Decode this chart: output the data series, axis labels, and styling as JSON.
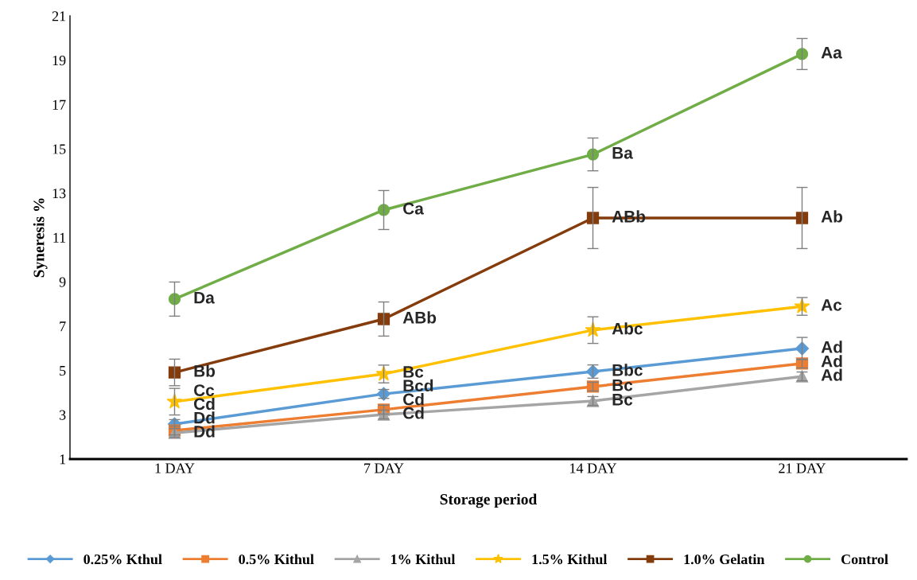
{
  "chart_data": {
    "type": "line",
    "xlabel": "Storage period",
    "ylabel": "Syneresis %",
    "categories": [
      "1 DAY",
      "7 DAY",
      "14 DAY",
      "21 DAY"
    ],
    "ylim": [
      1,
      21
    ],
    "yticks": [
      1,
      3,
      5,
      7,
      9,
      11,
      13,
      15,
      17,
      19,
      21
    ],
    "grid": false,
    "legend": "bottom",
    "series": [
      {
        "name": "0.25% Kthul",
        "color": "#5b9bd5",
        "marker": "diamond",
        "values": [
          2.58,
          3.94,
          4.95,
          5.99
        ],
        "errors": [
          0.2,
          0.2,
          0.3,
          0.5
        ],
        "value_labels": [
          "Cd",
          "Bcd",
          "Bbc",
          "Ad"
        ]
      },
      {
        "name": "0.5% Kithul",
        "color": "#ed7d31",
        "marker": "square",
        "values": [
          2.29,
          3.23,
          4.27,
          5.31
        ],
        "errors": [
          0.2,
          0.2,
          0.2,
          0.2
        ],
        "value_labels": [
          "Dd",
          "Cd",
          "Bc",
          "Ad"
        ]
      },
      {
        "name": "1% Kithul",
        "color": "#a5a5a5",
        "marker": "triangle",
        "values": [
          2.18,
          3.01,
          3.62,
          4.73
        ],
        "errors": [
          0.2,
          0.2,
          0.2,
          0.2
        ],
        "value_labels": [
          "Dd",
          "Cd",
          "Bc",
          "Ad"
        ]
      },
      {
        "name": "1.5% Kithul",
        "color": "#ffc000",
        "marker": "star",
        "values": [
          3.59,
          4.84,
          6.82,
          7.89
        ],
        "errors": [
          0.6,
          0.4,
          0.6,
          0.4
        ],
        "value_labels": [
          "Cc",
          "Bc",
          "Abc",
          "Ac"
        ]
      },
      {
        "name": "1.0% Gelatin",
        "color": "#843c0c",
        "marker": "square",
        "values": [
          4.91,
          7.32,
          11.88,
          11.88
        ],
        "errors": [
          0.6,
          0.77,
          1.38,
          1.38
        ],
        "value_labels": [
          "Bb",
          "ABb",
          "ABb",
          "Ab"
        ]
      },
      {
        "name": "Control",
        "color": "#70ad47",
        "marker": "circle",
        "values": [
          8.22,
          12.24,
          14.75,
          19.28
        ],
        "errors": [
          0.77,
          0.88,
          0.74,
          0.7
        ],
        "value_labels": [
          "Da",
          "Ca",
          "Ba",
          "Aa"
        ]
      }
    ]
  }
}
